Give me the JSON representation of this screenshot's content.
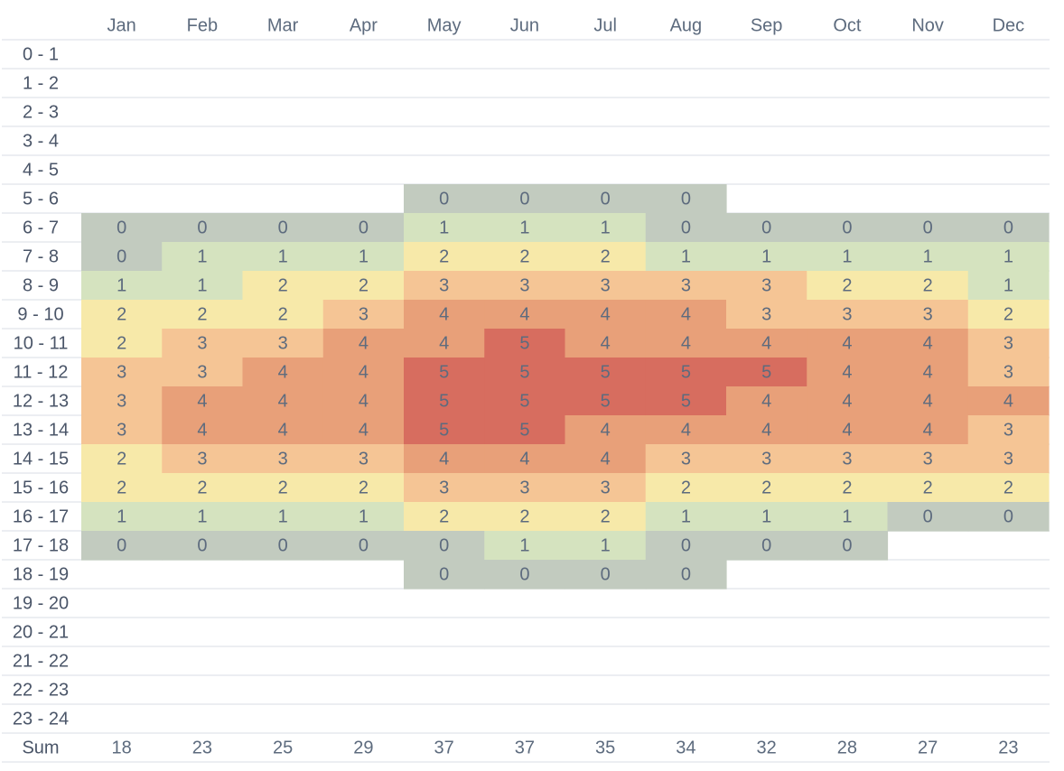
{
  "chart_data": {
    "type": "heatmap",
    "columns": [
      "Jan",
      "Feb",
      "Mar",
      "Apr",
      "May",
      "Jun",
      "Jul",
      "Aug",
      "Sep",
      "Oct",
      "Nov",
      "Dec"
    ],
    "rows": [
      "0 - 1",
      "1 - 2",
      "2 - 3",
      "3 - 4",
      "4 - 5",
      "5 - 6",
      "6 - 7",
      "7 - 8",
      "8 - 9",
      "9 - 10",
      "10 - 11",
      "11 - 12",
      "12 - 13",
      "13 - 14",
      "14 - 15",
      "15 - 16",
      "16 - 17",
      "17 - 18",
      "18 - 19",
      "19 - 20",
      "20 - 21",
      "21 - 22",
      "22 - 23",
      "23 - 24"
    ],
    "values": [
      [
        null,
        null,
        null,
        null,
        null,
        null,
        null,
        null,
        null,
        null,
        null,
        null
      ],
      [
        null,
        null,
        null,
        null,
        null,
        null,
        null,
        null,
        null,
        null,
        null,
        null
      ],
      [
        null,
        null,
        null,
        null,
        null,
        null,
        null,
        null,
        null,
        null,
        null,
        null
      ],
      [
        null,
        null,
        null,
        null,
        null,
        null,
        null,
        null,
        null,
        null,
        null,
        null
      ],
      [
        null,
        null,
        null,
        null,
        null,
        null,
        null,
        null,
        null,
        null,
        null,
        null
      ],
      [
        null,
        null,
        null,
        null,
        0,
        0,
        0,
        0,
        null,
        null,
        null,
        null
      ],
      [
        0,
        0,
        0,
        0,
        1,
        1,
        1,
        0,
        0,
        0,
        0,
        0
      ],
      [
        0,
        1,
        1,
        1,
        2,
        2,
        2,
        1,
        1,
        1,
        1,
        1
      ],
      [
        1,
        1,
        2,
        2,
        3,
        3,
        3,
        3,
        3,
        2,
        2,
        1
      ],
      [
        2,
        2,
        2,
        3,
        4,
        4,
        4,
        4,
        3,
        3,
        3,
        2
      ],
      [
        2,
        3,
        3,
        4,
        4,
        5,
        4,
        4,
        4,
        4,
        4,
        3
      ],
      [
        3,
        3,
        4,
        4,
        5,
        5,
        5,
        5,
        5,
        4,
        4,
        3
      ],
      [
        3,
        4,
        4,
        4,
        5,
        5,
        5,
        5,
        4,
        4,
        4,
        4
      ],
      [
        3,
        4,
        4,
        4,
        5,
        5,
        4,
        4,
        4,
        4,
        4,
        3
      ],
      [
        2,
        3,
        3,
        3,
        4,
        4,
        4,
        3,
        3,
        3,
        3,
        3
      ],
      [
        2,
        2,
        2,
        2,
        3,
        3,
        3,
        2,
        2,
        2,
        2,
        2
      ],
      [
        1,
        1,
        1,
        1,
        2,
        2,
        2,
        1,
        1,
        1,
        0,
        0
      ],
      [
        0,
        0,
        0,
        0,
        0,
        1,
        1,
        0,
        0,
        0,
        null,
        null
      ],
      [
        null,
        null,
        null,
        null,
        0,
        0,
        0,
        0,
        null,
        null,
        null,
        null
      ],
      [
        null,
        null,
        null,
        null,
        null,
        null,
        null,
        null,
        null,
        null,
        null,
        null
      ],
      [
        null,
        null,
        null,
        null,
        null,
        null,
        null,
        null,
        null,
        null,
        null,
        null
      ],
      [
        null,
        null,
        null,
        null,
        null,
        null,
        null,
        null,
        null,
        null,
        null,
        null
      ],
      [
        null,
        null,
        null,
        null,
        null,
        null,
        null,
        null,
        null,
        null,
        null,
        null
      ],
      [
        null,
        null,
        null,
        null,
        null,
        null,
        null,
        null,
        null,
        null,
        null,
        null
      ]
    ],
    "sum_label": "Sum",
    "sums": [
      "18",
      "23",
      "25",
      "29",
      "37",
      "37",
      "35",
      "34",
      "32",
      "28",
      "27",
      "23"
    ],
    "color_scale": {
      "0": "#c2cbbf",
      "1": "#d5e3bf",
      "2": "#f7e9a9",
      "3": "#f5c595",
      "4": "#e8a079",
      "5": "#d76d5f"
    },
    "grid_line_color": "#e6e9ee",
    "text_color": "#5d6b7e"
  }
}
